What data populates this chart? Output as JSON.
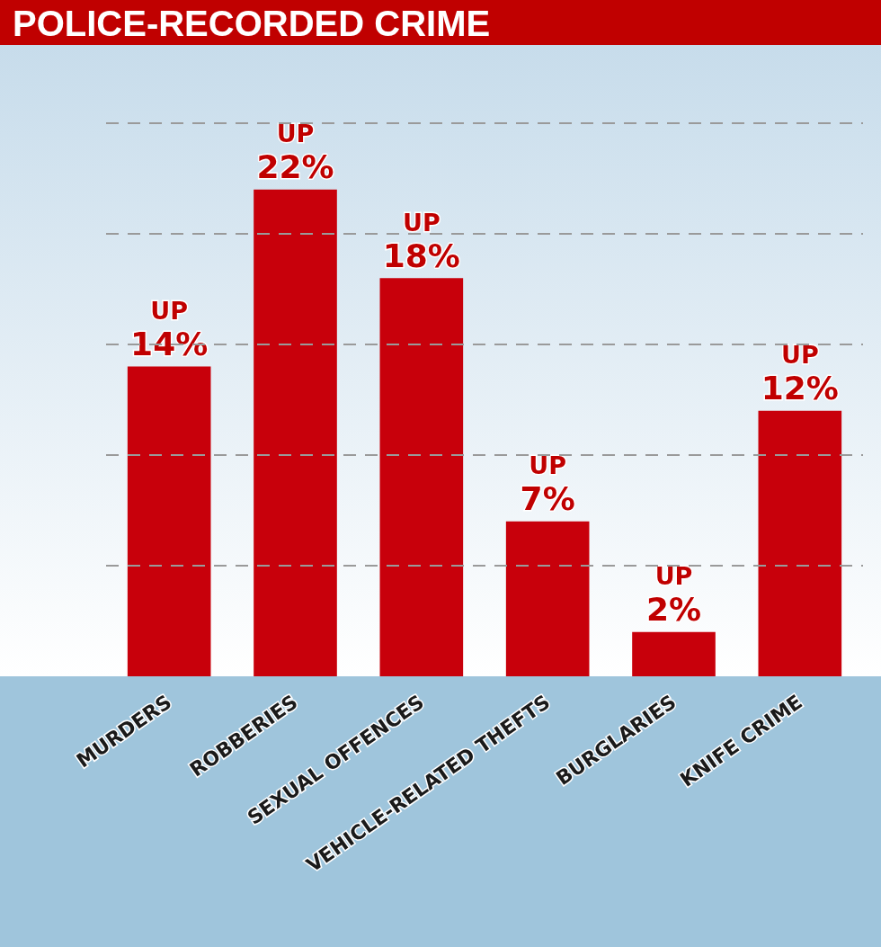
{
  "chart_data": {
    "type": "bar",
    "title": "POLICE-RECORDED CRIME",
    "categories": [
      "MURDERS",
      "ROBBERIES",
      "SEXUAL OFFENCES",
      "VEHICLE-RELATED THEFTS",
      "BURGLARIES",
      "KNIFE CRIME"
    ],
    "values": [
      14,
      22,
      18,
      7,
      2,
      12
    ],
    "value_labels": [
      "UP\n14%",
      "UP\n22%",
      "UP\n18%",
      "UP\n7%",
      "UP\n2%",
      "UP\n12%"
    ],
    "color": "#c8000b",
    "ylim": [
      0,
      25
    ],
    "yticks": [
      {
        "value": 5,
        "label": null
      },
      {
        "value": 10,
        "label": null
      },
      {
        "value": 15,
        "label": null
      },
      {
        "value": 20,
        "label": null
      },
      {
        "value": 25,
        "label": null
      }
    ],
    "grid": "y",
    "tick_labels": "x"
  }
}
